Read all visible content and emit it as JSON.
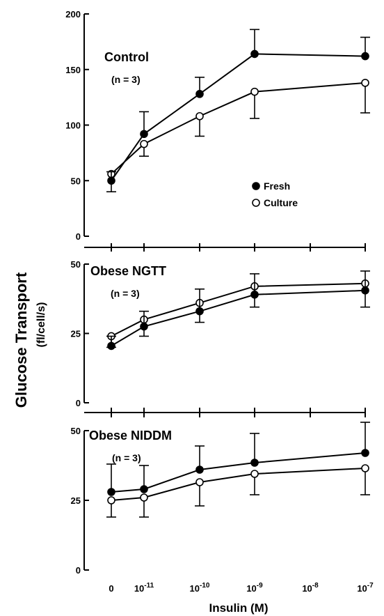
{
  "chart_data": {
    "type": "line",
    "ylabel": "Glucose Transport",
    "ylabel_unit": "(fl/cell/s)",
    "xlabel": "Insulin (M)",
    "x_ticks": [
      {
        "base": "0",
        "exp": ""
      },
      {
        "base": "10",
        "exp": "-11"
      },
      {
        "base": "10",
        "exp": "-10"
      },
      {
        "base": "10",
        "exp": "-9"
      },
      {
        "base": "10",
        "exp": "-8"
      },
      {
        "base": "10",
        "exp": "-7"
      }
    ],
    "x_index": [
      0,
      1,
      2,
      3,
      5
    ],
    "legend": [
      "Fresh",
      "Culture"
    ],
    "panels": [
      {
        "title": "Control",
        "n_label": "(n = 3)",
        "ylim": [
          0,
          200
        ],
        "yticks": [
          0,
          50,
          100,
          150,
          200
        ],
        "series": [
          {
            "name": "Fresh",
            "marker": "filled",
            "values": [
              50,
              92,
              128,
              164,
              162
            ],
            "errors": [
              8,
              20,
              15,
              22,
              17
            ]
          },
          {
            "name": "Culture",
            "marker": "open",
            "values": [
              56,
              83,
              108,
              130,
              138
            ],
            "errors": [
              16,
              11,
              18,
              24,
              27
            ]
          }
        ]
      },
      {
        "title": "Obese NGTT",
        "n_label": "(n = 3)",
        "ylim": [
          0,
          50
        ],
        "yticks": [
          0,
          25,
          50
        ],
        "series": [
          {
            "name": "Fresh",
            "marker": "filled",
            "values": [
              20.5,
              27.5,
              33,
              39,
              40.5
            ],
            "errors": [
              3.5,
              5.5,
              8,
              7.5,
              7
            ]
          },
          {
            "name": "Culture",
            "marker": "open",
            "values": [
              24,
              30,
              36,
              42,
              43
            ],
            "errors": [
              4,
              6,
              7,
              7.5,
              8.5
            ]
          }
        ]
      },
      {
        "title": "Obese NIDDM",
        "n_label": "(n = 3)",
        "ylim": [
          0,
          50
        ],
        "yticks": [
          0,
          25,
          50
        ],
        "series": [
          {
            "name": "Fresh",
            "marker": "filled",
            "values": [
              28,
              29,
              36,
              38.5,
              42
            ],
            "errors": [
              10,
              8.5,
              8.5,
              10.5,
              11
            ]
          },
          {
            "name": "Culture",
            "marker": "open",
            "values": [
              25,
              26,
              31.5,
              34.5,
              36.5
            ],
            "errors": [
              6,
              7,
              8.5,
              7.5,
              9.5
            ]
          }
        ]
      }
    ]
  }
}
